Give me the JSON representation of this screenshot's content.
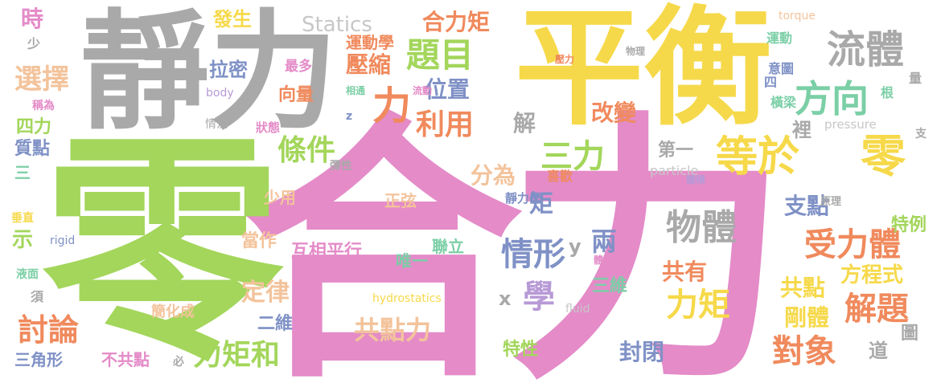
{
  "colors": {
    "pink": "#e48bc8",
    "green": "#a3d65b",
    "gray": "#a9a9a9",
    "yellow": "#f6d94a",
    "orange": "#f08a5d",
    "blue": "#7f91c6",
    "teal": "#7bcfa6",
    "peach": "#f3c39b",
    "lightgray": "#c7c7c7",
    "violet": "#b79ad6"
  },
  "words": [
    {
      "id": "w1",
      "text": "合力"
    },
    {
      "id": "w2",
      "text": "零"
    },
    {
      "id": "w3",
      "text": "平衡"
    },
    {
      "id": "w4",
      "text": "靜力"
    },
    {
      "id": "w5",
      "text": "等於"
    },
    {
      "id": "w6",
      "text": "零"
    },
    {
      "id": "w7",
      "text": "受力體"
    },
    {
      "id": "w8",
      "text": "流體"
    },
    {
      "id": "w9",
      "text": "方向"
    },
    {
      "id": "w10",
      "text": "題目"
    },
    {
      "id": "w11",
      "text": "力"
    },
    {
      "id": "w12",
      "text": "利用"
    },
    {
      "id": "w13",
      "text": "條件"
    },
    {
      "id": "w14",
      "text": "三力"
    },
    {
      "id": "w15",
      "text": "物體"
    },
    {
      "id": "w16",
      "text": "情形"
    },
    {
      "id": "w17",
      "text": "學"
    },
    {
      "id": "w18",
      "text": "力矩"
    },
    {
      "id": "w19",
      "text": "解題"
    },
    {
      "id": "w20",
      "text": "對象"
    },
    {
      "id": "w21",
      "text": "討論"
    },
    {
      "id": "w22",
      "text": "力矩和"
    },
    {
      "id": "w23",
      "text": "定律"
    },
    {
      "id": "w24",
      "text": "共點力"
    },
    {
      "id": "w25",
      "text": "Statics"
    },
    {
      "id": "w26",
      "text": "合力矩"
    },
    {
      "id": "w27",
      "text": "壓縮"
    },
    {
      "id": "w28",
      "text": "位置"
    },
    {
      "id": "w29",
      "text": "改變"
    },
    {
      "id": "w30",
      "text": "分為"
    },
    {
      "id": "w31",
      "text": "支點"
    },
    {
      "id": "w32",
      "text": "方程式"
    },
    {
      "id": "w33",
      "text": "共點"
    },
    {
      "id": "w34",
      "text": "剛體"
    },
    {
      "id": "w35",
      "text": "共有"
    },
    {
      "id": "w36",
      "text": "封閉"
    },
    {
      "id": "w37",
      "text": "選擇"
    },
    {
      "id": "w38",
      "text": "時"
    },
    {
      "id": "w39",
      "text": "發生"
    },
    {
      "id": "w40",
      "text": "拉密"
    },
    {
      "id": "w41",
      "text": "向量"
    },
    {
      "id": "w42",
      "text": "最多"
    },
    {
      "id": "w43",
      "text": "運動學"
    },
    {
      "id": "w44",
      "text": "解"
    },
    {
      "id": "w45",
      "text": "矩"
    },
    {
      "id": "w46",
      "text": "兩"
    },
    {
      "id": "w47",
      "text": "y"
    },
    {
      "id": "w48",
      "text": "x"
    },
    {
      "id": "w49",
      "text": "三維"
    },
    {
      "id": "w50",
      "text": "二維"
    },
    {
      "id": "w51",
      "text": "唯一"
    },
    {
      "id": "w52",
      "text": "聯立"
    },
    {
      "id": "w53",
      "text": "互相平行"
    },
    {
      "id": "w54",
      "text": "正弦"
    },
    {
      "id": "w55",
      "text": "當作"
    },
    {
      "id": "w56",
      "text": "少用"
    },
    {
      "id": "w57",
      "text": "示"
    },
    {
      "id": "w58",
      "text": "四力"
    },
    {
      "id": "w59",
      "text": "質點"
    },
    {
      "id": "w60",
      "text": "三"
    },
    {
      "id": "w61",
      "text": "三角形"
    },
    {
      "id": "w62",
      "text": "不共點"
    },
    {
      "id": "w63",
      "text": "必"
    },
    {
      "id": "w64",
      "text": "簡化成"
    },
    {
      "id": "w65",
      "text": "特性"
    },
    {
      "id": "w66",
      "text": "特例"
    },
    {
      "id": "w67",
      "text": "道"
    },
    {
      "id": "w68",
      "text": "圖"
    },
    {
      "id": "w69",
      "text": "裡"
    },
    {
      "id": "w70",
      "text": "第一"
    },
    {
      "id": "w71",
      "text": "喜歡"
    },
    {
      "id": "w72",
      "text": "靜力學"
    },
    {
      "id": "w73",
      "text": "hydrostatics"
    },
    {
      "id": "w74",
      "text": "particle"
    },
    {
      "id": "w75",
      "text": "pressure"
    },
    {
      "id": "w76",
      "text": "torque"
    },
    {
      "id": "w77",
      "text": "運動"
    },
    {
      "id": "w78",
      "text": "意圖"
    },
    {
      "id": "w79",
      "text": "四"
    },
    {
      "id": "w80",
      "text": "根"
    },
    {
      "id": "w81",
      "text": "量"
    },
    {
      "id": "w82",
      "text": "橫梁"
    },
    {
      "id": "w83",
      "text": "支"
    },
    {
      "id": "w84",
      "text": "體積"
    },
    {
      "id": "w85",
      "text": "原理"
    },
    {
      "id": "w86",
      "text": "物理"
    },
    {
      "id": "w87",
      "text": "壓力"
    },
    {
      "id": "w88",
      "text": "流動"
    },
    {
      "id": "w89",
      "text": "相通"
    },
    {
      "id": "w90",
      "text": "body"
    },
    {
      "id": "w91",
      "text": "z"
    },
    {
      "id": "w92",
      "text": "狀態"
    },
    {
      "id": "w93",
      "text": "情況"
    },
    {
      "id": "w94",
      "text": "稱為"
    },
    {
      "id": "w95",
      "text": "少"
    },
    {
      "id": "w96",
      "text": "彈性"
    },
    {
      "id": "w97",
      "text": "垂直"
    },
    {
      "id": "w98",
      "text": "rigid"
    },
    {
      "id": "w99",
      "text": "液面"
    },
    {
      "id": "w100",
      "text": "須"
    },
    {
      "id": "w101",
      "text": "fluid"
    },
    {
      "id": "w102",
      "text": "體當"
    }
  ]
}
